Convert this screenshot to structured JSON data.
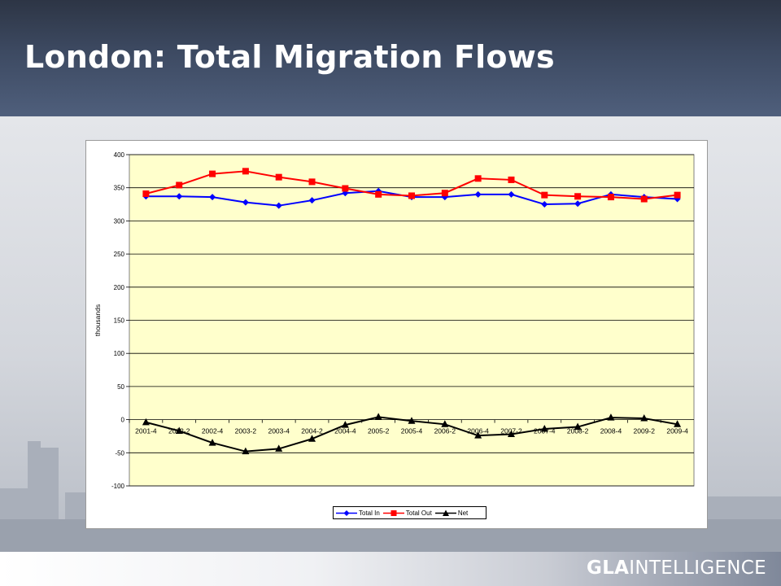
{
  "slide": {
    "title": "London: Total Migration Flows",
    "logo_gla": "GLA",
    "logo_intelligence": "INTELLIGENCE"
  },
  "colors": {
    "header": "#3d4a62",
    "plot_bg": "#ffffcc",
    "total_in": "#0000ff",
    "total_out": "#ff0000",
    "net": "#000000"
  },
  "chart_data": {
    "type": "line",
    "title": "",
    "xlabel": "",
    "ylabel": "thousands",
    "ylim": [
      -100,
      400
    ],
    "yticks": [
      -100,
      -50,
      0,
      50,
      100,
      150,
      200,
      250,
      300,
      350,
      400
    ],
    "grid": true,
    "legend_position": "bottom",
    "x": [
      "2001-4",
      "2002-2",
      "2002-4",
      "2003-2",
      "2003-4",
      "2004-2",
      "2004-4",
      "2005-2",
      "2005-4",
      "2006-2",
      "2006-4",
      "2007-2",
      "2007-4",
      "2008-2",
      "2008-4",
      "2009-2",
      "2009-4"
    ],
    "series": [
      {
        "name": "Total In",
        "color": "#0000ff",
        "marker": "diamond",
        "values": [
          337,
          337,
          336,
          328,
          323,
          331,
          342,
          345,
          336,
          336,
          340,
          340,
          325,
          326,
          340,
          336,
          333
        ]
      },
      {
        "name": "Total Out",
        "color": "#ff0000",
        "marker": "square",
        "values": [
          341,
          354,
          371,
          375,
          366,
          359,
          349,
          340,
          338,
          342,
          364,
          362,
          339,
          337,
          336,
          333,
          339
        ]
      },
      {
        "name": "Net",
        "color": "#000000",
        "marker": "triangle",
        "values": [
          -4,
          -17,
          -35,
          -48,
          -44,
          -29,
          -8,
          4,
          -2,
          -7,
          -24,
          -22,
          -14,
          -11,
          3,
          2,
          -7
        ]
      }
    ]
  }
}
